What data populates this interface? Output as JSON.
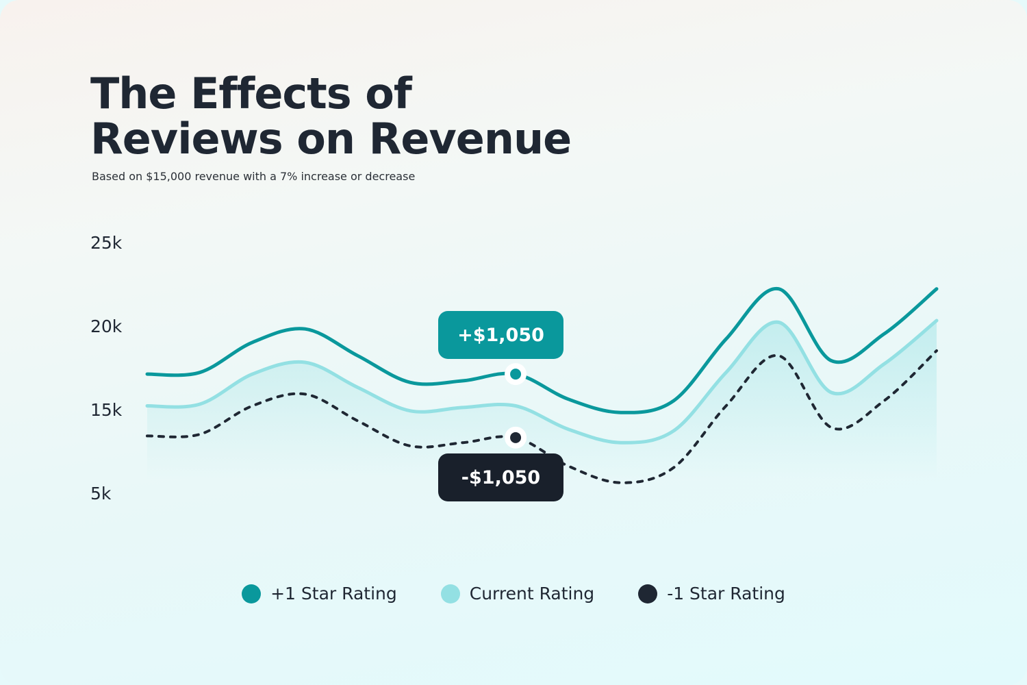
{
  "header": {
    "title_line1": "The Effects of",
    "title_line2": "Reviews on Revenue",
    "subtitle": "Based on $15,000 revenue with a 7% increase or decrease"
  },
  "chart_data": {
    "type": "line",
    "title": "The Effects of Reviews on Revenue",
    "subtitle": "Based on $15,000 revenue with a 7% increase or decrease",
    "xlabel": "",
    "ylabel": "",
    "yticks": [
      "25k",
      "20k",
      "15k",
      "5k"
    ],
    "legend_position": "bottom",
    "grid": false,
    "series": [
      {
        "name": "+1 Star Rating",
        "color": "#0a989c",
        "style": "solid",
        "values": [
          17.2,
          17.3,
          19.1,
          19.9,
          18.3,
          16.7,
          16.8,
          17.2,
          15.7,
          14.9,
          15.6,
          19.3,
          22.3,
          18.0,
          19.6,
          22.3
        ]
      },
      {
        "name": "Current Rating",
        "color": "#93e0e3",
        "style": "solid",
        "fill": true,
        "values": [
          15.3,
          15.4,
          17.2,
          17.9,
          16.4,
          15.0,
          15.2,
          15.3,
          13.9,
          13.1,
          13.8,
          17.3,
          20.3,
          16.1,
          17.8,
          20.4
        ]
      },
      {
        "name": "-1 Star Rating",
        "color": "#1f2733",
        "style": "dashed",
        "values": [
          13.5,
          13.6,
          15.3,
          16.0,
          14.4,
          12.9,
          13.1,
          13.4,
          11.7,
          10.7,
          11.6,
          15.3,
          18.3,
          14.0,
          15.6,
          18.6
        ]
      }
    ],
    "annotations": [
      {
        "label": "+$1,050",
        "series": 0,
        "point_index": 7,
        "color": "#0a989c"
      },
      {
        "label": "-$1,050",
        "series": 2,
        "point_index": 7,
        "color": "#19202b"
      }
    ]
  }
}
